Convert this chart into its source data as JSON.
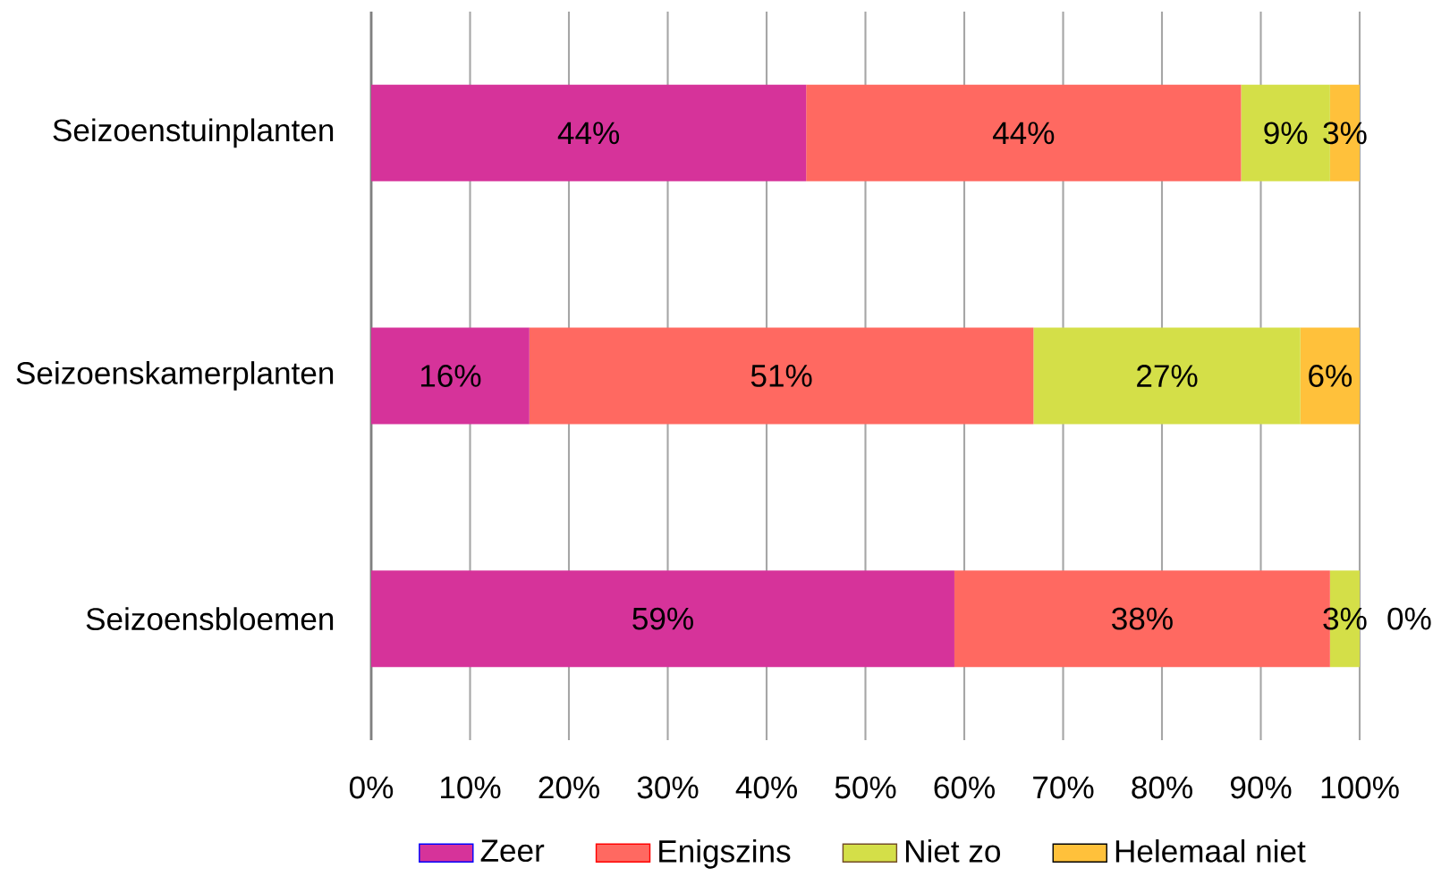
{
  "chart_data": {
    "type": "bar",
    "orientation": "horizontal",
    "stacked": true,
    "categories": [
      "Seizoenstuinplanten",
      "Seizoenskamerplanten",
      "Seizoensbloemen"
    ],
    "series": [
      {
        "name": "Zeer",
        "color": "#d6339a",
        "values": [
          44,
          16,
          59
        ],
        "value_labels": [
          "44%",
          "16%",
          "59%"
        ]
      },
      {
        "name": "Enigszins",
        "color": "#ff6961",
        "values": [
          44,
          51,
          38
        ],
        "value_labels": [
          "44%",
          "51%",
          "38%"
        ]
      },
      {
        "name": "Niet zo",
        "color": "#d4df48",
        "values": [
          9,
          27,
          3
        ],
        "value_labels": [
          "9%",
          "27%",
          "3%"
        ]
      },
      {
        "name": "Helemaal niet",
        "color": "#ffc13b",
        "values": [
          3,
          6,
          0
        ],
        "value_labels": [
          "3%",
          "6%",
          "0%"
        ]
      }
    ],
    "xlim": [
      0,
      100
    ],
    "xticks": [
      {
        "value": 0,
        "label": "0%"
      },
      {
        "value": 10,
        "label": "10%"
      },
      {
        "value": 20,
        "label": "20%"
      },
      {
        "value": 30,
        "label": "30%"
      },
      {
        "value": 40,
        "label": "40%"
      },
      {
        "value": 50,
        "label": "50%"
      },
      {
        "value": 60,
        "label": "60%"
      },
      {
        "value": 70,
        "label": "70%"
      },
      {
        "value": 80,
        "label": "80%"
      },
      {
        "value": 90,
        "label": "90%"
      },
      {
        "value": 100,
        "label": "100%"
      }
    ],
    "grid": "x",
    "legend": "bottom"
  }
}
